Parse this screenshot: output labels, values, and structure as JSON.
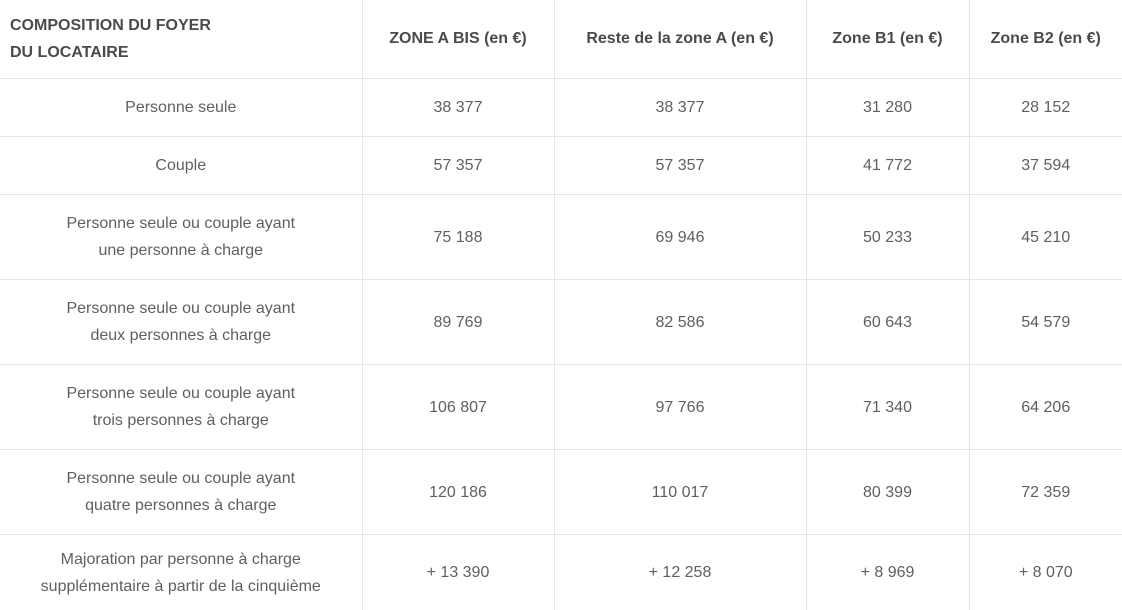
{
  "table": {
    "headers": [
      "COMPOSITION DU FOYER\nDU LOCATAIRE",
      "ZONE A BIS (en €)",
      "Reste de la zone A (en €)",
      "Zone B1 (en €)",
      "Zone B2 (en €)"
    ],
    "rows": [
      {
        "label": "Personne seule",
        "values": [
          "38 377",
          "38 377",
          "31 280",
          "28 152"
        ]
      },
      {
        "label": "Couple",
        "values": [
          "57 357",
          "57 357",
          "41 772",
          "37 594"
        ]
      },
      {
        "label": "Personne seule ou couple ayant\nune personne à charge",
        "values": [
          "75 188",
          "69 946",
          "50 233",
          "45 210"
        ]
      },
      {
        "label": "Personne seule ou couple ayant\ndeux personnes à charge",
        "values": [
          "89 769",
          "82 586",
          "60 643",
          "54 579"
        ]
      },
      {
        "label": "Personne seule ou couple ayant\ntrois personnes à charge",
        "values": [
          "106 807",
          "97 766",
          "71 340",
          "64 206"
        ]
      },
      {
        "label": "Personne seule ou couple ayant\nquatre personnes à charge",
        "values": [
          "120 186",
          "110 017",
          "80 399",
          "72 359"
        ]
      },
      {
        "label": "Majoration par personne à charge\nsupplémentaire à partir de la cinquième",
        "values": [
          "+ 13 390",
          "+ 12 258",
          "+ 8 969",
          "+ 8 070"
        ]
      }
    ]
  }
}
